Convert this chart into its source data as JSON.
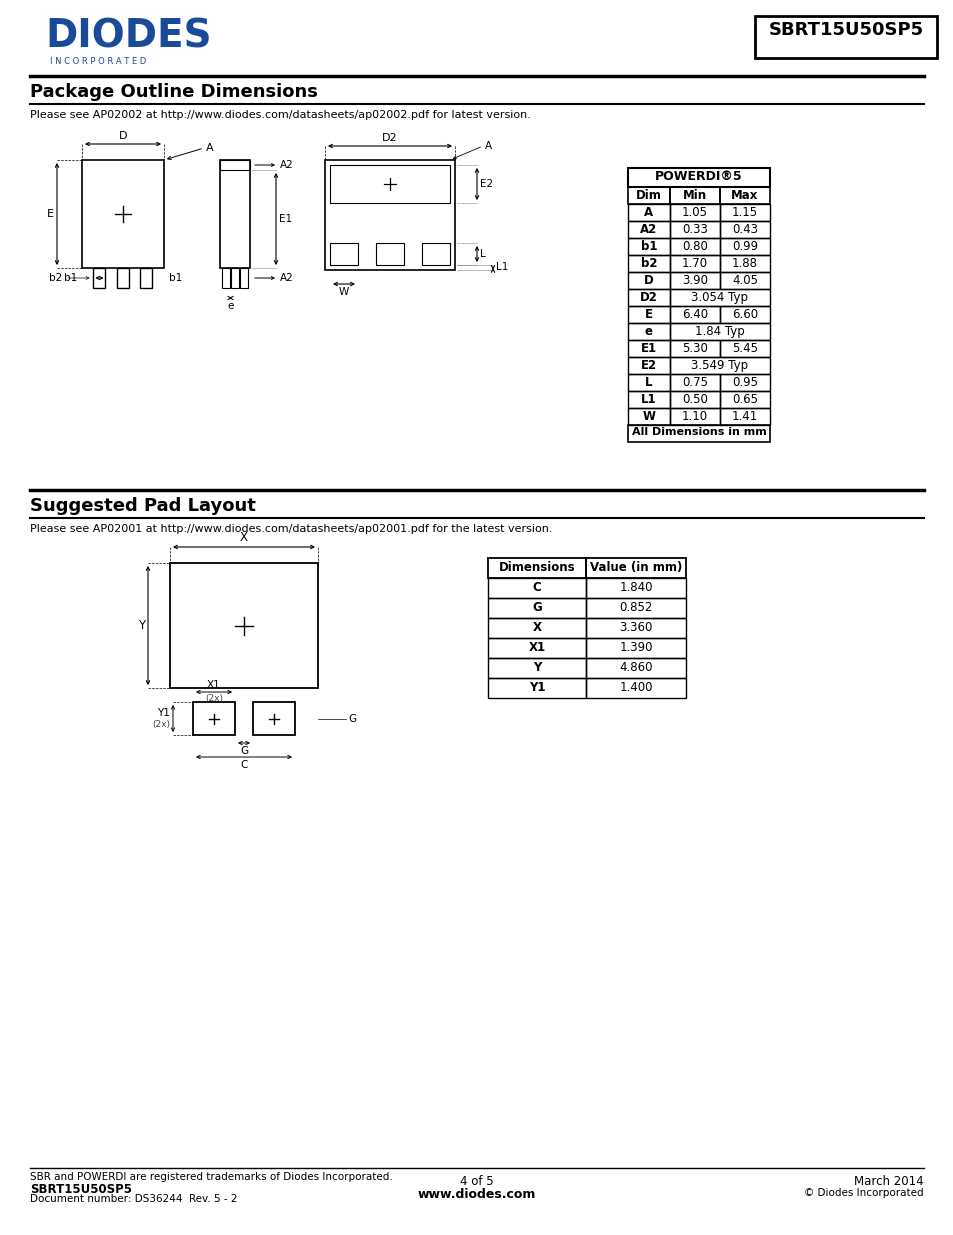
{
  "title_part": "SBRT15U50SP5",
  "section1_title": "Package Outline Dimensions",
  "section1_subtitle": "Please see AP02002 at http://www.diodes.com/datasheets/ap02002.pdf for latest version.",
  "section2_title": "Suggested Pad Layout",
  "section2_subtitle": "Please see AP02001 at http://www.diodes.com/datasheets/ap02001.pdf for the latest version.",
  "table1_title": "POWERDI®5",
  "table1_header": [
    "Dim",
    "Min",
    "Max"
  ],
  "table1_rows": [
    [
      "A",
      "1.05",
      "1.15"
    ],
    [
      "A2",
      "0.33",
      "0.43"
    ],
    [
      "b1",
      "0.80",
      "0.99"
    ],
    [
      "b2",
      "1.70",
      "1.88"
    ],
    [
      "D",
      "3.90",
      "4.05"
    ],
    [
      "D2",
      "3.054 Typ",
      null
    ],
    [
      "E",
      "6.40",
      "6.60"
    ],
    [
      "e",
      "1.84 Typ",
      null
    ],
    [
      "E1",
      "5.30",
      "5.45"
    ],
    [
      "E2",
      "3.549 Typ",
      null
    ],
    [
      "L",
      "0.75",
      "0.95"
    ],
    [
      "L1",
      "0.50",
      "0.65"
    ],
    [
      "W",
      "1.10",
      "1.41"
    ],
    [
      "All Dimensions in mm",
      null,
      null
    ]
  ],
  "table2_header": [
    "Dimensions",
    "Value (in mm)"
  ],
  "table2_rows": [
    [
      "C",
      "1.840"
    ],
    [
      "G",
      "0.852"
    ],
    [
      "X",
      "3.360"
    ],
    [
      "X1",
      "1.390"
    ],
    [
      "Y",
      "4.860"
    ],
    [
      "Y1",
      "1.400"
    ]
  ],
  "footer_left1": "SBR and POWERDI are registered trademarks of Diodes Incorporated.",
  "footer_left2": "SBRT15U50SP5",
  "footer_left3": "Document number: DS36244  Rev. 5 - 2",
  "footer_center": "4 of 5",
  "footer_center2": "www.diodes.com",
  "footer_right": "March 2014",
  "footer_right2": "© Diodes Incorporated",
  "logo_text": "DIODES",
  "logo_sub": "I N C O R P O R A T E D",
  "blue_color": "#1a4b9b",
  "bg_color": "#ffffff",
  "text_color": "#000000"
}
